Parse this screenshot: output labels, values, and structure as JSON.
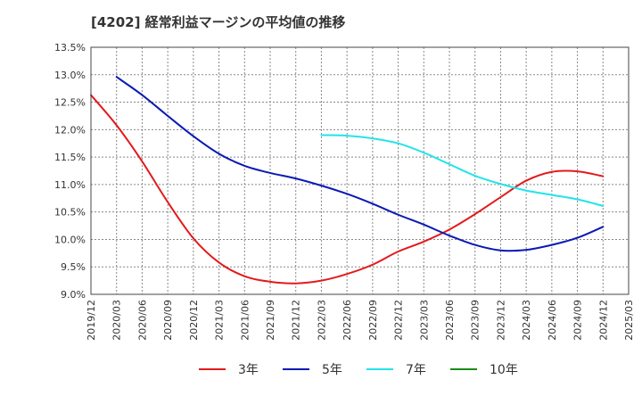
{
  "chart_data": {
    "type": "line",
    "title": "[4202]  経常利益マージンの平均値の推移",
    "xlabel": "",
    "ylabel": "",
    "ylim": [
      9.0,
      13.5
    ],
    "y_ticks": [
      "9.0%",
      "9.5%",
      "10.0%",
      "10.5%",
      "11.0%",
      "11.5%",
      "12.0%",
      "12.5%",
      "13.0%",
      "13.5%"
    ],
    "x_ticks": [
      "2019/12",
      "2020/03",
      "2020/06",
      "2020/09",
      "2020/12",
      "2021/03",
      "2021/06",
      "2021/09",
      "2021/12",
      "2022/03",
      "2022/06",
      "2022/09",
      "2022/12",
      "2023/03",
      "2023/06",
      "2023/09",
      "2023/12",
      "2024/03",
      "2024/06",
      "2024/09",
      "2024/12",
      "2025/03"
    ],
    "grid": true,
    "legend_position": "bottom",
    "series": [
      {
        "name": "3年",
        "color": "#e31a1c",
        "points": [
          [
            "2019/12",
            12.63
          ],
          [
            "2020/03",
            12.08
          ],
          [
            "2020/06",
            11.42
          ],
          [
            "2020/09",
            10.68
          ],
          [
            "2020/12",
            10.02
          ],
          [
            "2021/03",
            9.58
          ],
          [
            "2021/06",
            9.33
          ],
          [
            "2021/09",
            9.23
          ],
          [
            "2021/12",
            9.2
          ],
          [
            "2022/03",
            9.25
          ],
          [
            "2022/06",
            9.37
          ],
          [
            "2022/09",
            9.54
          ],
          [
            "2022/12",
            9.78
          ],
          [
            "2023/03",
            9.96
          ],
          [
            "2023/06",
            10.18
          ],
          [
            "2023/09",
            10.46
          ],
          [
            "2023/12",
            10.77
          ],
          [
            "2024/03",
            11.07
          ],
          [
            "2024/06",
            11.23
          ],
          [
            "2024/09",
            11.24
          ],
          [
            "2024/12",
            11.15
          ]
        ]
      },
      {
        "name": "5年",
        "color": "#0a1ab4",
        "points": [
          [
            "2020/03",
            12.96
          ],
          [
            "2020/06",
            12.63
          ],
          [
            "2020/09",
            12.25
          ],
          [
            "2020/12",
            11.88
          ],
          [
            "2021/03",
            11.56
          ],
          [
            "2021/06",
            11.34
          ],
          [
            "2021/09",
            11.21
          ],
          [
            "2021/12",
            11.11
          ],
          [
            "2022/03",
            10.98
          ],
          [
            "2022/06",
            10.83
          ],
          [
            "2022/09",
            10.65
          ],
          [
            "2022/12",
            10.45
          ],
          [
            "2023/03",
            10.27
          ],
          [
            "2023/06",
            10.07
          ],
          [
            "2023/09",
            9.9
          ],
          [
            "2023/12",
            9.8
          ],
          [
            "2024/03",
            9.81
          ],
          [
            "2024/06",
            9.9
          ],
          [
            "2024/09",
            10.03
          ],
          [
            "2024/12",
            10.23
          ]
        ]
      },
      {
        "name": "7年",
        "color": "#22e4ea",
        "points": [
          [
            "2022/03",
            11.9
          ],
          [
            "2022/06",
            11.89
          ],
          [
            "2022/09",
            11.84
          ],
          [
            "2022/12",
            11.75
          ],
          [
            "2023/03",
            11.58
          ],
          [
            "2023/06",
            11.37
          ],
          [
            "2023/09",
            11.16
          ],
          [
            "2023/12",
            11.01
          ],
          [
            "2024/03",
            10.89
          ],
          [
            "2024/06",
            10.81
          ],
          [
            "2024/09",
            10.73
          ],
          [
            "2024/12",
            10.61
          ]
        ]
      },
      {
        "name": "10年",
        "color": "#1a8c1a",
        "points": []
      }
    ]
  }
}
